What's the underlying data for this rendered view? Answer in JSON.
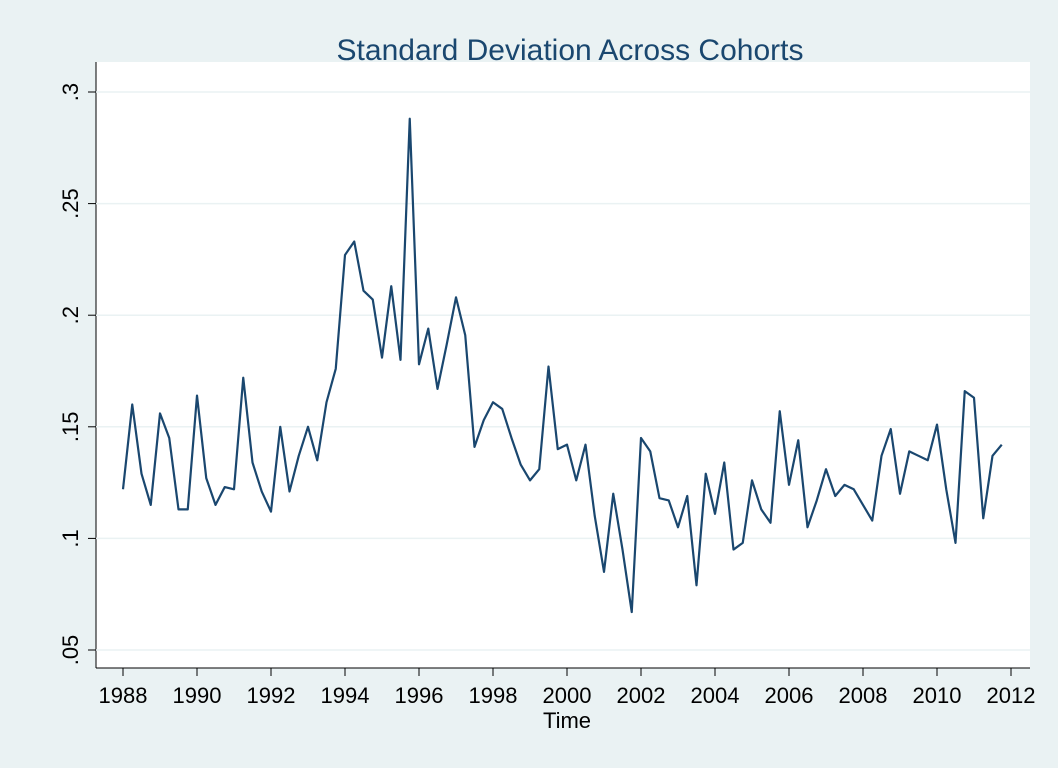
{
  "chart_data": {
    "type": "line",
    "title": "Standard Deviation Across Cohorts",
    "x_label": "Time",
    "color": "#1a476f",
    "grid": true,
    "xlim": [
      1988,
      2012
    ],
    "xticks": [
      1988,
      1990,
      1992,
      1994,
      1996,
      1998,
      2000,
      2002,
      2004,
      2006,
      2008,
      2010,
      2012
    ],
    "ylim": [
      0.05,
      0.3
    ],
    "yticks": [
      {
        "value": 0.05,
        "label": ".05"
      },
      {
        "value": 0.1,
        "label": ".1"
      },
      {
        "value": 0.15,
        "label": ".15"
      },
      {
        "value": 0.2,
        "label": ".2"
      },
      {
        "value": 0.25,
        "label": ".25"
      },
      {
        "value": 0.3,
        "label": ".3"
      }
    ],
    "x": [
      1988,
      1988.25,
      1988.5,
      1988.75,
      1989,
      1989.25,
      1989.5,
      1989.75,
      1990,
      1990.25,
      1990.5,
      1990.75,
      1991,
      1991.25,
      1991.5,
      1991.75,
      1992,
      1992.25,
      1992.5,
      1992.75,
      1993,
      1993.25,
      1993.5,
      1993.75,
      1994,
      1994.25,
      1994.5,
      1994.75,
      1995,
      1995.25,
      1995.5,
      1995.75,
      1996,
      1996.25,
      1996.5,
      1996.75,
      1997,
      1997.25,
      1997.5,
      1997.75,
      1998,
      1998.25,
      1998.5,
      1998.75,
      1999,
      1999.25,
      1999.5,
      1999.75,
      2000,
      2000.25,
      2000.5,
      2000.75,
      2001,
      2001.25,
      2001.5,
      2001.75,
      2002,
      2002.25,
      2002.5,
      2002.75,
      2003,
      2003.25,
      2003.5,
      2003.75,
      2004,
      2004.25,
      2004.5,
      2004.75,
      2005,
      2005.25,
      2005.5,
      2005.75,
      2006,
      2006.25,
      2006.5,
      2006.75,
      2007,
      2007.25,
      2007.5,
      2007.75,
      2008,
      2008.25,
      2008.5,
      2008.75,
      2009,
      2009.25,
      2009.5,
      2009.75,
      2010,
      2010.25,
      2010.5,
      2010.75,
      2011,
      2011.25,
      2011.5,
      2011.75
    ],
    "values": [
      0.122,
      0.16,
      0.129,
      0.115,
      0.156,
      0.145,
      0.113,
      0.113,
      0.164,
      0.127,
      0.115,
      0.123,
      0.122,
      0.172,
      0.134,
      0.121,
      0.112,
      0.15,
      0.121,
      0.137,
      0.15,
      0.135,
      0.161,
      0.176,
      0.227,
      0.233,
      0.211,
      0.207,
      0.181,
      0.213,
      0.18,
      0.288,
      0.178,
      0.194,
      0.167,
      0.187,
      0.208,
      0.191,
      0.141,
      0.153,
      0.161,
      0.158,
      0.145,
      0.133,
      0.126,
      0.131,
      0.177,
      0.14,
      0.142,
      0.126,
      0.142,
      0.11,
      0.085,
      0.12,
      0.095,
      0.067,
      0.145,
      0.139,
      0.118,
      0.117,
      0.105,
      0.119,
      0.079,
      0.129,
      0.111,
      0.134,
      0.095,
      0.098,
      0.126,
      0.113,
      0.107,
      0.157,
      0.124,
      0.144,
      0.105,
      0.117,
      0.131,
      0.119,
      0.124,
      0.122,
      0.115,
      0.108,
      0.137,
      0.149,
      0.12,
      0.139,
      0.137,
      0.135,
      0.151,
      0.122,
      0.098,
      0.166,
      0.163,
      0.109,
      0.137,
      0.142
    ]
  }
}
